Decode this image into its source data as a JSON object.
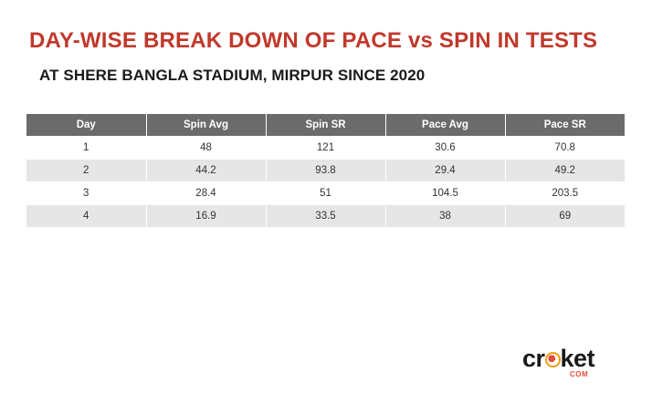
{
  "title": "DAY-WISE BREAK DOWN OF PACE vs SPIN IN TESTS",
  "subtitle": "AT SHERE BANGLA STADIUM, MIRPUR SINCE 2020",
  "table": {
    "headers": [
      "Day",
      "Spin Avg",
      "Spin SR",
      "Pace Avg",
      "Pace SR"
    ],
    "rows": [
      [
        "1",
        "48",
        "121",
        "30.6",
        "70.8"
      ],
      [
        "2",
        "44.2",
        "93.8",
        "29.4",
        "49.2"
      ],
      [
        "3",
        "28.4",
        "51",
        "104.5",
        "203.5"
      ],
      [
        "4",
        "16.9",
        "33.5",
        "38",
        "69"
      ]
    ]
  },
  "logo": {
    "text_before": "cr",
    "text_after": "ket",
    "sub": "COM",
    "brand_color": "#e74c3c"
  },
  "colors": {
    "title": "#c0392b",
    "header_bg": "#6b6b6b",
    "row_alt_bg": "#e6e6e6"
  }
}
